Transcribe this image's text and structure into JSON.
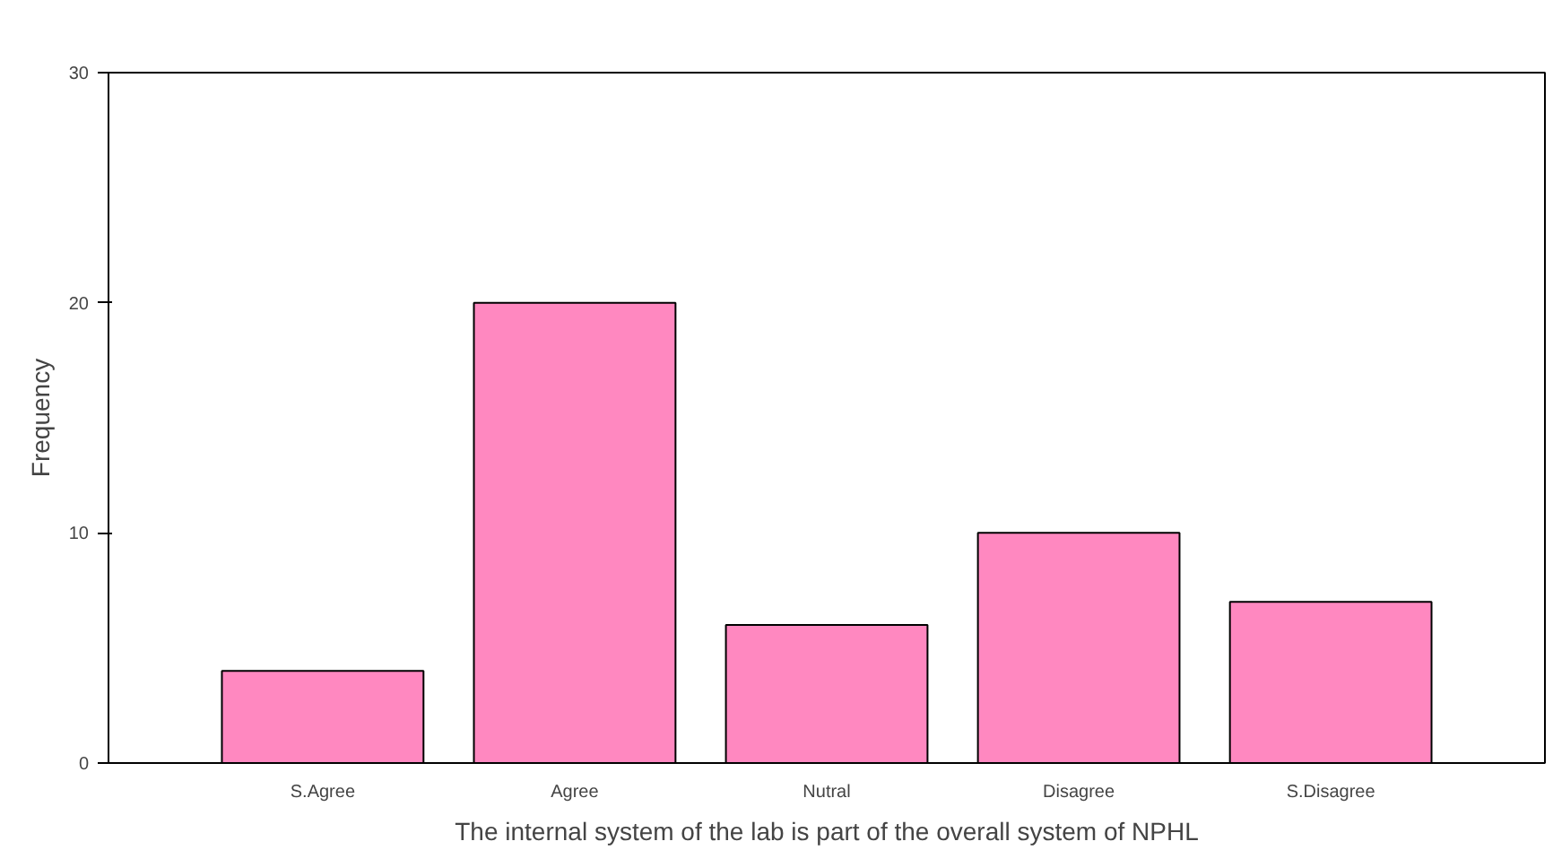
{
  "chart_data": {
    "type": "bar",
    "xlabel": "The internal system of the lab is part of the overall system of NPHL",
    "ylabel": "Frequency",
    "categories": [
      "S.Agree",
      "Agree",
      "Nutral",
      "Disagree",
      "S.Disagree"
    ],
    "values": [
      4,
      20,
      6,
      10,
      7
    ],
    "color": "#ff88c0",
    "ylim": [
      0,
      30
    ],
    "yticks": [
      0,
      10,
      20,
      30
    ],
    "grid": false
  }
}
